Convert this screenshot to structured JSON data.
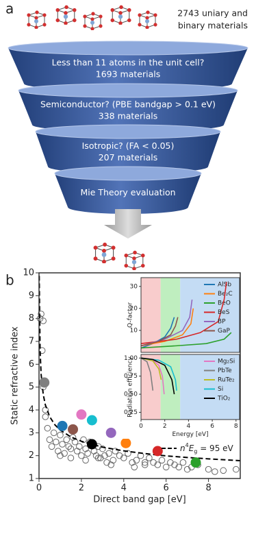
{
  "panel_a": {
    "label": "a",
    "total": [
      "2743 uniary and",
      "binary materials"
    ],
    "stages": [
      {
        "question": "Less than 11 atoms in the unit cell?",
        "count": "1693 materials"
      },
      {
        "question": "Semiconductor? (PBE bandgap > 0.1 eV)",
        "count": "338 materials"
      },
      {
        "question": "Isotropic? (FA < 0.05)",
        "count": "207 materials"
      },
      {
        "question": "Mie Theory evaluation"
      }
    ]
  },
  "panel_b": {
    "label": "b"
  },
  "chart_data": [
    {
      "type": "scatter",
      "xlabel": "Direct band gap [eV]",
      "ylabel": "Static refractive index",
      "xlim": [
        0,
        9.5
      ],
      "ylim": [
        1,
        10
      ],
      "xticks": [
        0,
        2,
        4,
        6,
        8
      ],
      "yticks": [
        1,
        2,
        3,
        4,
        5,
        6,
        7,
        8,
        9,
        10
      ],
      "points": {
        "color": "#666666",
        "x": [
          0.05,
          0.1,
          0.15,
          0.2,
          0.3,
          0.4,
          0.5,
          0.6,
          0.7,
          0.8,
          0.9,
          1.0,
          1.1,
          1.2,
          1.3,
          1.4,
          1.5,
          1.6,
          1.7,
          1.8,
          1.9,
          2.0,
          2.1,
          2.2,
          2.3,
          2.4,
          2.6,
          2.7,
          2.8,
          2.9,
          3.0,
          3.1,
          3.2,
          3.3,
          3.5,
          3.6,
          3.8,
          4.0,
          4.2,
          4.4,
          4.6,
          4.8,
          5.0,
          5.2,
          5.4,
          5.6,
          5.8,
          6.0,
          6.2,
          6.4,
          6.6,
          6.8,
          7.0,
          7.2,
          7.5,
          8.0,
          8.3,
          8.7,
          9.3,
          0.2,
          0.3,
          1.0,
          1.5,
          2.2,
          2.8,
          3.4,
          4.5,
          5.0
        ],
        "y": [
          8.0,
          8.2,
          6.6,
          5.0,
          4.0,
          3.2,
          2.7,
          2.4,
          3.0,
          2.6,
          2.2,
          2.9,
          2.5,
          2.1,
          2.7,
          2.4,
          2.3,
          2.8,
          2.6,
          2.2,
          2.4,
          2.0,
          2.7,
          2.3,
          2.1,
          2.6,
          2.2,
          2.0,
          2.4,
          1.9,
          2.3,
          2.0,
          1.7,
          2.1,
          1.8,
          2.2,
          2.0,
          1.9,
          2.1,
          1.7,
          1.8,
          2.0,
          1.6,
          1.9,
          1.7,
          1.6,
          1.8,
          1.5,
          1.7,
          1.6,
          1.5,
          1.7,
          1.4,
          1.5,
          1.6,
          1.4,
          1.3,
          1.35,
          1.4,
          7.9,
          3.7,
          2.0,
          1.9,
          1.8,
          1.9,
          1.6,
          1.5,
          1.7
        ]
      },
      "highlighted": {
        "x": [
          0.25,
          1.1,
          1.6,
          2.0,
          2.5,
          2.5,
          3.4,
          4.1,
          5.6,
          7.4
        ],
        "y": [
          5.2,
          3.3,
          3.15,
          3.8,
          3.55,
          2.5,
          3.0,
          2.55,
          2.2,
          1.7
        ],
        "colors": [
          "#7f7f7f",
          "#1f77b4",
          "#8c564b",
          "#e377c2",
          "#17becf",
          "#000000",
          "#9467bd",
          "#ff7f0e",
          "#d62728",
          "#2ca02c"
        ]
      },
      "curve": {
        "label_parts": [
          "n",
          "4",
          "E",
          "g",
          " = 95 eV"
        ],
        "x": [
          0.01,
          0.05,
          0.1,
          0.2,
          0.3,
          0.5,
          0.75,
          1,
          1.5,
          2,
          3,
          4,
          5,
          6,
          7,
          8,
          9.5
        ],
        "y": [
          9.87,
          6.6,
          5.55,
          4.67,
          4.22,
          3.71,
          3.35,
          3.12,
          2.82,
          2.63,
          2.37,
          2.21,
          2.09,
          1.99,
          1.92,
          1.86,
          1.78
        ]
      }
    },
    {
      "type": "line",
      "ylabel": "Q-factor",
      "xlim": [
        0,
        8.3
      ],
      "ylim": [
        0,
        34
      ],
      "yticks": [
        10,
        20,
        30
      ],
      "legend": "right",
      "bands": [
        {
          "from": 0,
          "to": 1.65,
          "color": "#f8cccc"
        },
        {
          "from": 1.65,
          "to": 3.3,
          "color": "#bfeebf"
        },
        {
          "from": 3.3,
          "to": 8.3,
          "color": "#c4dcf4"
        }
      ],
      "series": [
        {
          "name": "AlSb",
          "color": "#1f77b4",
          "x": [
            0,
            1,
            2,
            2.5,
            2.8
          ],
          "values": [
            2,
            4,
            7,
            11,
            16
          ]
        },
        {
          "name": "Be₂C",
          "color": "#ff7f0e",
          "x": [
            0,
            2,
            3.5,
            4.2,
            4.4
          ],
          "values": [
            3,
            5,
            8,
            13,
            20
          ]
        },
        {
          "name": "BeO",
          "color": "#2ca02c",
          "x": [
            0,
            3,
            5.5,
            7,
            7.6
          ],
          "values": [
            2,
            3,
            4,
            6,
            9
          ]
        },
        {
          "name": "BeS",
          "color": "#d62728",
          "x": [
            0,
            3,
            5,
            6.5,
            7,
            7.2
          ],
          "values": [
            4,
            6,
            9,
            14,
            24,
            32
          ]
        },
        {
          "name": "BP",
          "color": "#9467bd",
          "x": [
            0,
            2,
            3.5,
            4.1,
            4.3
          ],
          "values": [
            3,
            6,
            10,
            16,
            24
          ]
        },
        {
          "name": "GaP",
          "color": "#8c564b",
          "x": [
            0,
            1.5,
            2.5,
            2.9,
            3.1
          ],
          "values": [
            3,
            5,
            8,
            12,
            16
          ]
        }
      ]
    },
    {
      "type": "line",
      "xlabel": "Energy [eV]",
      "ylabel": "Radiation efficiency",
      "xlim": [
        0,
        8.3
      ],
      "ylim": [
        0.15,
        1.05
      ],
      "xticks": [
        0,
        2,
        4,
        6,
        8
      ],
      "yticks": [
        0.25,
        {
          "value": 0.5,
          "label": "0.50"
        },
        0.75,
        {
          "value": 1,
          "label": "1.00"
        }
      ],
      "legend": "right",
      "bands": [
        {
          "from": 0,
          "to": 1.65,
          "color": "#f8cccc"
        },
        {
          "from": 1.65,
          "to": 3.3,
          "color": "#bfeebf"
        },
        {
          "from": 3.3,
          "to": 8.3,
          "color": "#c4dcf4"
        }
      ],
      "series": [
        {
          "name": "Mg₂Si",
          "color": "#e377c2",
          "x": [
            0,
            1,
            1.5,
            1.8,
            1.95
          ],
          "values": [
            1,
            0.97,
            0.9,
            0.75,
            0.5
          ]
        },
        {
          "name": "PbTe",
          "color": "#7f7f7f",
          "x": [
            0,
            0.5,
            0.8,
            1.0
          ],
          "values": [
            1,
            0.95,
            0.8,
            0.55
          ]
        },
        {
          "name": "RuTe₂",
          "color": "#bcbd22",
          "x": [
            0,
            1,
            1.5,
            1.7
          ],
          "values": [
            1,
            0.96,
            0.85,
            0.7
          ]
        },
        {
          "name": "Si",
          "color": "#17becf",
          "x": [
            0,
            1.5,
            2.5,
            2.9,
            3.0
          ],
          "values": [
            1,
            0.97,
            0.88,
            0.7,
            0.55
          ]
        },
        {
          "name": "TiO₂",
          "color": "#000000",
          "x": [
            0,
            1,
            2,
            2.6,
            2.8
          ],
          "values": [
            1,
            0.98,
            0.9,
            0.7,
            0.5
          ]
        }
      ]
    }
  ]
}
